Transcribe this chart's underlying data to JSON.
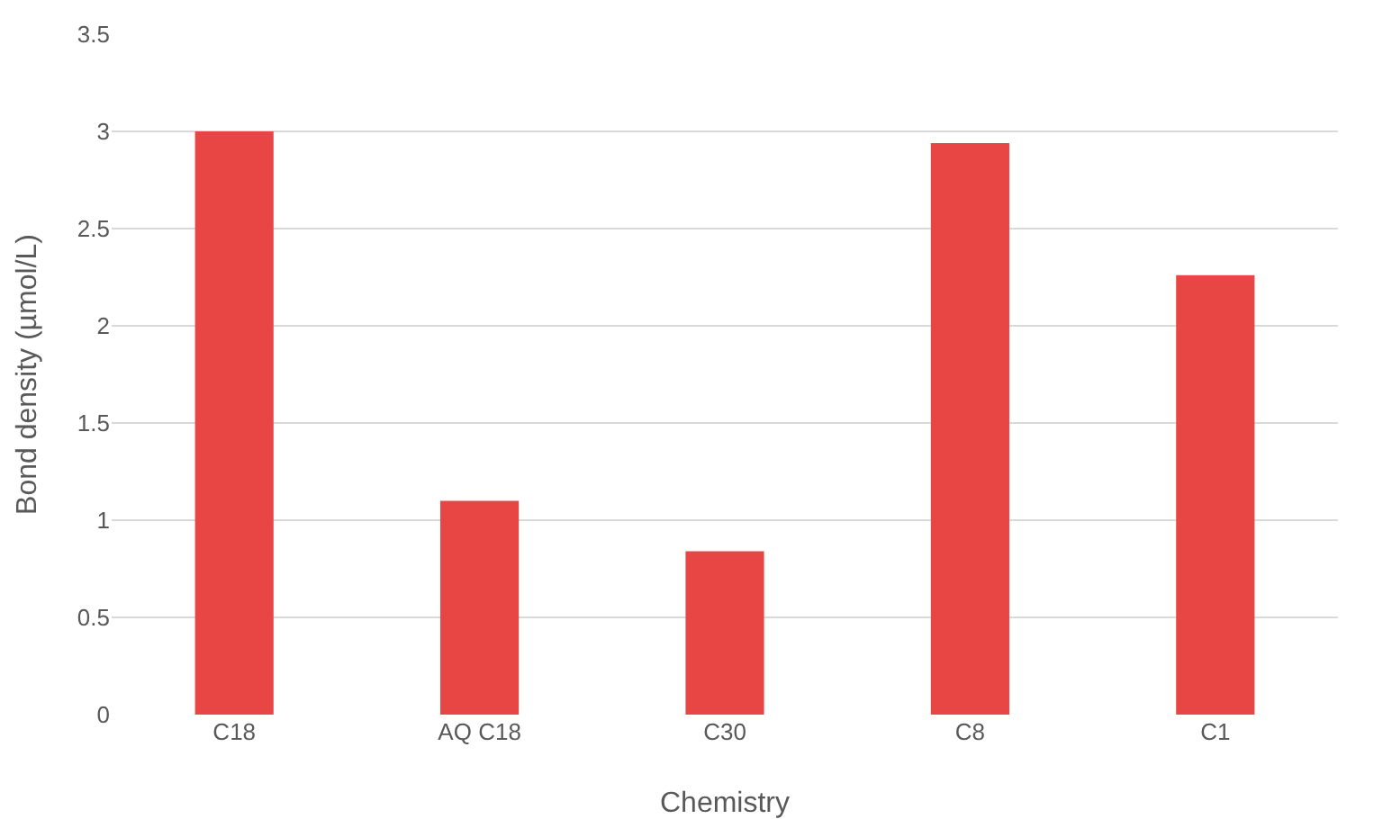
{
  "chart_data": {
    "type": "bar",
    "xlabel": "Chemistry",
    "ylabel": "Bond density (µmol/L)",
    "categories": [
      "C18",
      "AQ C18",
      "C30",
      "C8",
      "C1"
    ],
    "values": [
      3.0,
      1.1,
      0.84,
      2.94,
      2.26
    ],
    "color": "#e84545",
    "ylim": [
      0,
      3.5
    ],
    "yticks": [
      0,
      0.5,
      1,
      1.5,
      2,
      2.5,
      3,
      3.5
    ],
    "grid": "y",
    "legend": false
  }
}
